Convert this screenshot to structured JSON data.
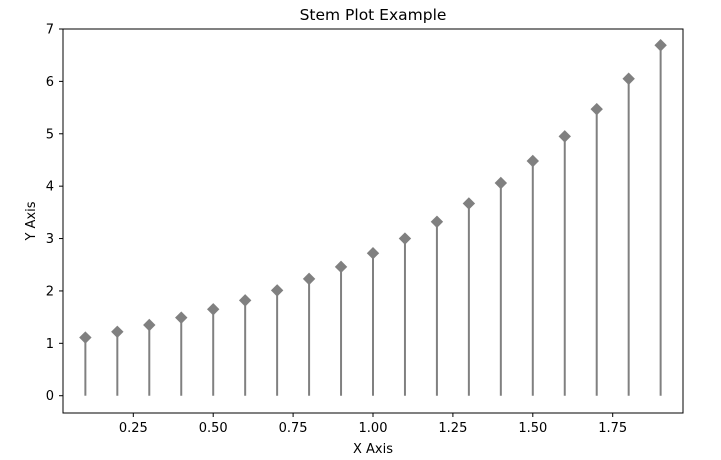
{
  "chart_data": {
    "type": "stem",
    "title": "Stem Plot Example",
    "xlabel": "X Axis",
    "ylabel": "Y Axis",
    "xlim": [
      0.03,
      1.97
    ],
    "ylim": [
      -0.33,
      7.0
    ],
    "xticks": [
      0.25,
      0.5,
      0.75,
      1.0,
      1.25,
      1.5,
      1.75
    ],
    "xtick_labels": [
      "0.25",
      "0.50",
      "0.75",
      "1.00",
      "1.25",
      "1.50",
      "1.75"
    ],
    "yticks": [
      0,
      1,
      2,
      3,
      4,
      5,
      6,
      7
    ],
    "ytick_labels": [
      "0",
      "1",
      "2",
      "3",
      "4",
      "5",
      "6",
      "7"
    ],
    "grid": false,
    "marker": "diamond",
    "color": "#808080",
    "x": [
      0.1,
      0.2,
      0.3,
      0.4,
      0.5,
      0.6,
      0.7,
      0.8,
      0.9,
      1.0,
      1.1,
      1.2,
      1.3,
      1.4,
      1.5,
      1.6,
      1.7,
      1.8,
      1.9
    ],
    "y": [
      1.11,
      1.22,
      1.35,
      1.49,
      1.65,
      1.82,
      2.01,
      2.23,
      2.46,
      2.72,
      3.0,
      3.32,
      3.67,
      4.06,
      4.48,
      4.95,
      5.47,
      6.05,
      6.69
    ]
  }
}
